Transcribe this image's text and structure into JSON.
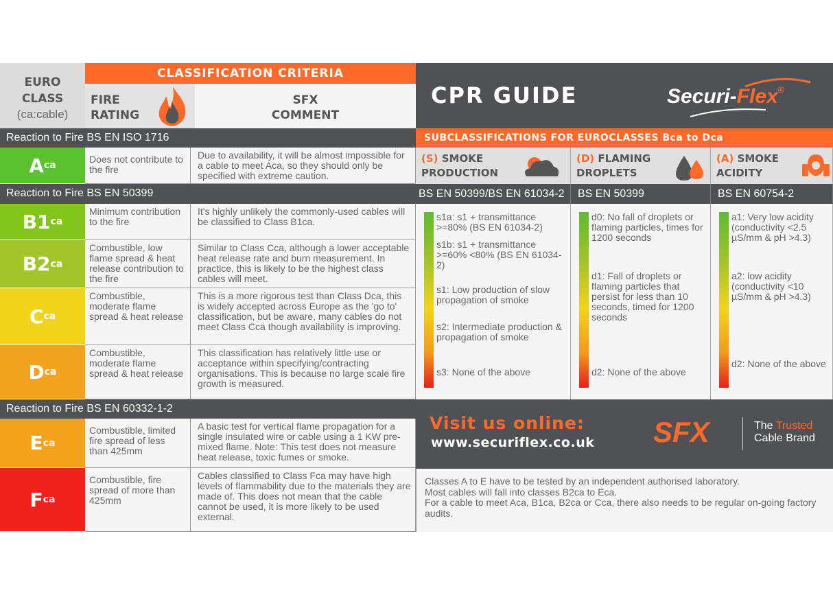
{
  "header": {
    "euro_class": [
      "EURO",
      "CLASS"
    ],
    "euro_class_note": "(ca:cable)",
    "criteria": "CLASSIFICATION CRITERIA",
    "fire_rating": [
      "FIRE",
      "RATING"
    ],
    "sfx_comment": [
      "SFX",
      "COMMENT"
    ],
    "title": "CPR GUIDE",
    "logo_main": "Securi-",
    "logo_accent": "Flex",
    "logo_reg": "®"
  },
  "bands": {
    "iso1716": "Reaction to Fire BS EN ISO 1716",
    "en50399": "Reaction to Fire BS EN 50399",
    "en60332": "Reaction to Fire BS EN 60332-1-2"
  },
  "classes": [
    {
      "letter": "A",
      "sub": "ca",
      "color": "#5cc12f",
      "rating": "Does not contribute to the fire",
      "comment": "Due to availability, it will be almost impossible for a cable to meet Aca, so they should only be specified with extreme caution."
    },
    {
      "letter": "B1",
      "sub": "ca",
      "color": "#84c51d",
      "rating": "Minimum contribution to the fire",
      "comment": "It's highly unlikely the commonly-used cables will be classified to Class B1ca."
    },
    {
      "letter": "B2",
      "sub": "ca",
      "color": "#a2c52b",
      "rating": "Combustible, low flame spread & heat release contribution to the fire",
      "comment": "Similar to Class Cca, although a lower acceptable heat release rate and burn measurement. In practice, this is likely to be the highest class cables will meet."
    },
    {
      "letter": "C",
      "sub": "ca",
      "color": "#f2d41b",
      "rating": "Combustible, moderate flame spread & heat release",
      "comment": "This is a more rigorous test than Class Dca, this is widely accepted across Europe as the 'go to' classification, but be aware, many cables do not meet Class Cca though availability is improving."
    },
    {
      "letter": "D",
      "sub": "ca",
      "color": "#f2a41f",
      "rating": "Combustible, moderate flame spread & heat release",
      "comment": "This classification has relatively little use or acceptance within specifying/contracting organisations. This is because no large scale fire growth is measured."
    },
    {
      "letter": "E",
      "sub": "ca",
      "color": "#f5a21c",
      "rating": "Combustible, limited fire spread of less than 425mm",
      "comment": "A basic test for vertical flame propagation for a single insulated wire or cable using a 1 KW pre-mixed flame. Note: This test does not measure heat release, toxic fumes or smoke."
    },
    {
      "letter": "F",
      "sub": "ca",
      "color": "#f0231c",
      "rating": "Combustible, fire spread of more than 425mm",
      "comment": "Cables classified to Class Fca may have high levels of flammability due to the materials they are made of. This does not mean that the cable cannot be used, it is more likely to be used external."
    }
  ],
  "subclass": {
    "title": "SUBCLASSIFICATIONS FOR EUROCLASSES Bca to Dca",
    "columns": [
      {
        "prefix": "(S)",
        "name1": "SMOKE",
        "name2": "PRODUCTION",
        "standard": "BS EN 50399/BS EN 61034-2",
        "items": [
          "s1a: s1 + transmittance >=80% (BS EN 61034-2)",
          "s1b: s1 + transmittance >=60% <80% (BS EN 61034-2)",
          "s1: Low production of slow propagation of smoke",
          "s2: Intermediate production & propagation of smoke",
          "s3: None of the above"
        ]
      },
      {
        "prefix": "(D)",
        "name1": "FLAMING",
        "name2": "DROPLETS",
        "standard": "BS EN 50399",
        "items": [
          "d0: No fall of droplets or flaming particles, times for 1200 seconds",
          "d1: Fall of droplets or flaming particles that persist for less than 10 seconds, timed for 1200 seconds",
          "d2: None of the above"
        ]
      },
      {
        "prefix": "(A)",
        "name1": "SMOKE",
        "name2": "ACIDITY",
        "standard": "BS EN 60754-2",
        "items": [
          "a1: Very low acidity (conductivity <2.5 µS/mm & pH >4.3)",
          "a2: low acidity (conductivity <10 µS/mm & pH >4.3)",
          "d2: None of the above"
        ]
      }
    ]
  },
  "footer": {
    "visit": "Visit us online:",
    "url": "www.securiflex.co.uk",
    "sfx": "SFX",
    "tag1a": "The ",
    "tag1b": "Trusted",
    "tag2": "Cable Brand",
    "notes": [
      "Classes A to E have to be tested by an independent authorised laboratory.",
      "Most cables will fall into classes B2ca to Eca.",
      "For a cable to meet Aca, B1ca, B2ca or Cca, there also needs to be regular on-going factory audits."
    ]
  },
  "colors": {
    "orange": "#ff6a2b",
    "dark": "#505155"
  }
}
